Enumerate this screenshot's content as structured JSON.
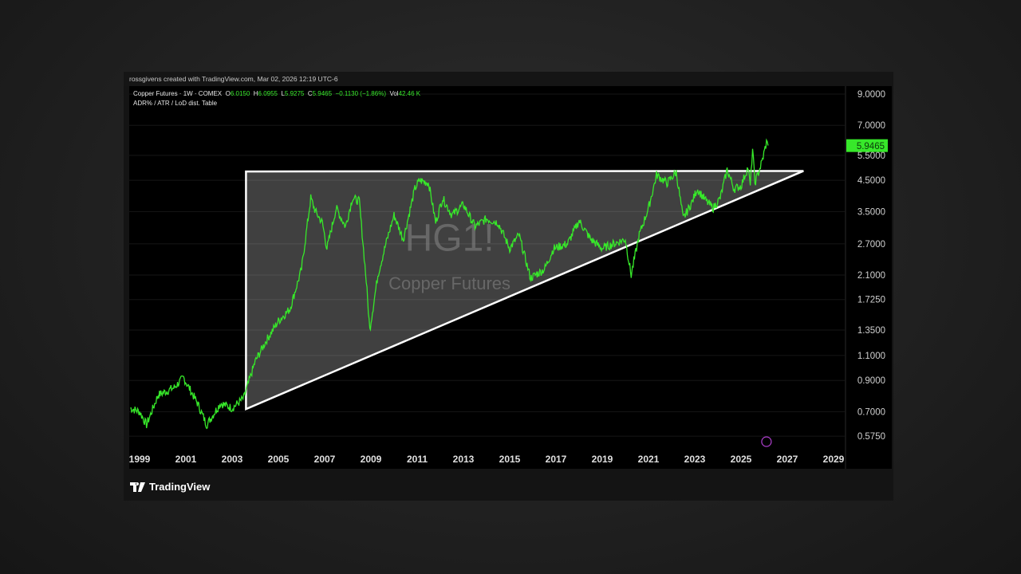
{
  "credit": "rossgivens created with TradingView.com, Mar 02, 2026 12:19 UTC-6",
  "legend": {
    "symbol": "Copper Futures · 1W · COMEX",
    "o_label": "O",
    "o": "6.0150",
    "h_label": "H",
    "h": "6.0955",
    "l_label": "L",
    "l": "5.9275",
    "c_label": "C",
    "c": "5.9465",
    "change": "−0.1130 (−1.86%)",
    "vol_label": "Vol",
    "vol": "42.46 K",
    "indicator": "ADR% / ATR / LoD dist. Table"
  },
  "watermark": {
    "ticker": "HG1!",
    "name": "Copper Futures"
  },
  "logo": "TradingView",
  "colors": {
    "series": "#37e82a",
    "price_tag": "#37e82a",
    "triangle": "#ffffff",
    "background": "#000000"
  },
  "chart_data": {
    "type": "line",
    "scale": "log",
    "grid": true,
    "ylim": [
      0.55,
      9.5
    ],
    "xlim": [
      1998.6,
      2029.5
    ],
    "y_ticks": [
      "9.0000",
      "7.0000",
      "5.5000",
      "4.5000",
      "3.5000",
      "2.7000",
      "2.1000",
      "1.7250",
      "1.3500",
      "1.1000",
      "0.9000",
      "0.7000",
      "0.5750"
    ],
    "x_ticks": [
      "1999",
      "2001",
      "2003",
      "2005",
      "2007",
      "2009",
      "2011",
      "2013",
      "2015",
      "2017",
      "2019",
      "2021",
      "2023",
      "2025",
      "2027",
      "2029"
    ],
    "last_price": "5.9465",
    "series": [
      {
        "x": [
          1998.6,
          1999.0,
          1999.3,
          1999.8,
          2000.5,
          2000.9,
          2001.5,
          2001.9,
          2002.5,
          2003.0,
          2003.5,
          2004.0,
          2004.5,
          2005.0,
          2005.5,
          2006.0,
          2006.4,
          2006.6,
          2006.9,
          2007.1,
          2007.5,
          2007.9,
          2008.2,
          2008.5,
          2008.8,
          2008.95,
          2009.3,
          2009.7,
          2010.0,
          2010.4,
          2010.9,
          2011.1,
          2011.5,
          2011.8,
          2012.1,
          2012.5,
          2013.0,
          2013.5,
          2014.0,
          2014.5,
          2015.0,
          2015.4,
          2015.9,
          2016.5,
          2016.9,
          2017.5,
          2018.0,
          2018.5,
          2019.0,
          2019.5,
          2020.0,
          2020.25,
          2020.6,
          2021.0,
          2021.35,
          2021.8,
          2022.2,
          2022.5,
          2022.9,
          2023.1,
          2023.5,
          2023.8,
          2024.1,
          2024.4,
          2024.7,
          2025.0,
          2025.3,
          2025.4,
          2025.5,
          2025.6,
          2025.9,
          2026.1,
          2026.17
        ],
        "y": [
          0.72,
          0.7,
          0.63,
          0.8,
          0.85,
          0.92,
          0.75,
          0.63,
          0.75,
          0.72,
          0.78,
          1.05,
          1.25,
          1.45,
          1.6,
          2.2,
          3.9,
          3.5,
          3.2,
          2.6,
          3.6,
          3.1,
          3.9,
          3.8,
          2.0,
          1.35,
          2.1,
          2.8,
          3.4,
          2.8,
          4.2,
          4.5,
          4.4,
          3.2,
          3.9,
          3.4,
          3.7,
          3.1,
          3.3,
          3.2,
          2.6,
          2.9,
          2.05,
          2.2,
          2.6,
          2.7,
          3.25,
          2.8,
          2.6,
          2.7,
          2.8,
          2.1,
          2.9,
          3.6,
          4.7,
          4.4,
          4.8,
          3.3,
          3.8,
          4.2,
          3.8,
          3.6,
          3.9,
          4.9,
          4.2,
          4.3,
          5.0,
          4.3,
          5.8,
          4.4,
          5.2,
          6.1,
          5.95
        ]
      }
    ],
    "annotations": [
      {
        "type": "triangle",
        "points": [
          [
            2003.6,
            4.83
          ],
          [
            2003.6,
            0.715
          ],
          [
            2027.7,
            4.85
          ]
        ]
      }
    ]
  }
}
